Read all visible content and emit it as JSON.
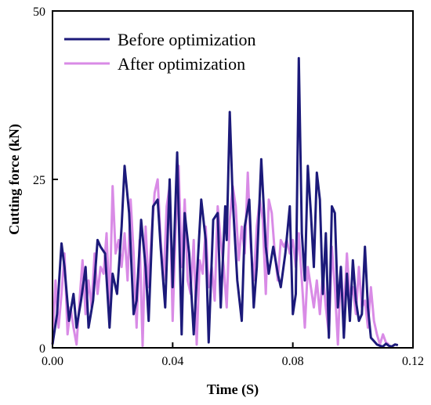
{
  "chart_data": {
    "type": "line",
    "xlabel": "Time (S)",
    "ylabel": "Cutting force (kN)",
    "xlim": [
      0,
      0.12
    ],
    "ylim": [
      0,
      50
    ],
    "xticks": [
      "0.00",
      "0.04",
      "0.08",
      "0.12"
    ],
    "yticks": [
      "0",
      "25",
      "50"
    ],
    "grid": false,
    "legend_position": "top-left",
    "series": [
      {
        "name": "Before optimization",
        "color": "#1c1a7a",
        "x": [
          0.0,
          0.0015,
          0.003,
          0.004,
          0.0055,
          0.007,
          0.008,
          0.0095,
          0.011,
          0.012,
          0.0135,
          0.015,
          0.016,
          0.0175,
          0.019,
          0.02,
          0.0215,
          0.023,
          0.024,
          0.0255,
          0.027,
          0.028,
          0.0295,
          0.031,
          0.032,
          0.0335,
          0.035,
          0.036,
          0.0375,
          0.039,
          0.04,
          0.0415,
          0.043,
          0.044,
          0.0455,
          0.047,
          0.048,
          0.0495,
          0.051,
          0.052,
          0.0535,
          0.055,
          0.056,
          0.0575,
          0.058,
          0.059,
          0.06,
          0.0615,
          0.063,
          0.064,
          0.0655,
          0.067,
          0.068,
          0.0695,
          0.071,
          0.072,
          0.0735,
          0.075,
          0.076,
          0.0775,
          0.079,
          0.08,
          0.081,
          0.082,
          0.083,
          0.084,
          0.085,
          0.086,
          0.087,
          0.088,
          0.089,
          0.09,
          0.091,
          0.092,
          0.093,
          0.094,
          0.095,
          0.096,
          0.097,
          0.098,
          0.099,
          0.1,
          0.101,
          0.102,
          0.103,
          0.104,
          0.105,
          0.106,
          0.107,
          0.108,
          0.109,
          0.11,
          0.111,
          0.112,
          0.113,
          0.114,
          0.115
        ],
        "y": [
          0.5,
          5,
          15.5,
          12,
          4,
          8,
          3,
          7,
          12,
          3,
          7,
          16,
          15,
          14,
          3,
          11,
          8,
          18,
          27,
          20,
          5,
          7,
          19,
          12,
          4,
          21,
          22,
          15,
          6,
          25,
          9,
          29,
          2,
          20,
          14,
          2,
          10,
          22,
          16,
          0.8,
          19,
          20,
          6,
          21,
          16,
          35,
          22,
          10,
          4,
          18,
          22,
          6,
          12,
          28,
          15,
          11,
          15,
          11,
          9,
          14,
          21,
          5,
          8,
          43,
          17,
          10,
          27,
          20,
          12,
          26,
          22,
          8,
          17,
          1.5,
          21,
          20,
          6,
          12,
          1.5,
          11,
          4,
          13,
          7,
          4,
          5,
          15,
          6,
          1.5,
          1,
          0.5,
          0.3,
          0.2,
          0.6,
          0.3,
          0.2,
          0.5,
          0.4
        ]
      },
      {
        "name": "After optimization",
        "color": "#d98be6",
        "x": [
          0.0,
          0.001,
          0.002,
          0.003,
          0.004,
          0.005,
          0.006,
          0.007,
          0.008,
          0.009,
          0.01,
          0.011,
          0.012,
          0.013,
          0.014,
          0.015,
          0.016,
          0.017,
          0.018,
          0.019,
          0.02,
          0.021,
          0.022,
          0.023,
          0.024,
          0.025,
          0.026,
          0.027,
          0.028,
          0.029,
          0.03,
          0.031,
          0.032,
          0.033,
          0.034,
          0.035,
          0.036,
          0.037,
          0.038,
          0.039,
          0.04,
          0.041,
          0.042,
          0.043,
          0.044,
          0.045,
          0.046,
          0.047,
          0.048,
          0.049,
          0.05,
          0.051,
          0.052,
          0.053,
          0.054,
          0.055,
          0.056,
          0.057,
          0.058,
          0.059,
          0.06,
          0.061,
          0.062,
          0.063,
          0.064,
          0.065,
          0.066,
          0.067,
          0.068,
          0.069,
          0.07,
          0.071,
          0.072,
          0.073,
          0.074,
          0.075,
          0.076,
          0.077,
          0.078,
          0.079,
          0.08,
          0.081,
          0.082,
          0.083,
          0.084,
          0.085,
          0.086,
          0.087,
          0.088,
          0.089,
          0.09,
          0.091,
          0.092,
          0.093,
          0.094,
          0.095,
          0.096,
          0.097,
          0.098,
          0.099,
          0.1,
          0.101,
          0.102,
          0.103,
          0.104,
          0.105,
          0.106,
          0.107,
          0.108,
          0.109,
          0.11,
          0.111,
          0.112
        ],
        "y": [
          0.5,
          10,
          3,
          8,
          14,
          2,
          6,
          3,
          0.5,
          7,
          13,
          5,
          10,
          6,
          14,
          8,
          12,
          11,
          17,
          6,
          24,
          14,
          16,
          12,
          17,
          10,
          22,
          14,
          3,
          16,
          0.3,
          18,
          9,
          17,
          23,
          25,
          16,
          10,
          21,
          24,
          4,
          18,
          27,
          12,
          22,
          10,
          8,
          16,
          0.5,
          13,
          11,
          18,
          9,
          12,
          7,
          21,
          16,
          12,
          6,
          19,
          24,
          21,
          13,
          18,
          14,
          26,
          15,
          10,
          18,
          22,
          19,
          8,
          22,
          20,
          14,
          10,
          16,
          15,
          16,
          14,
          16,
          12,
          17,
          10,
          3,
          12,
          9,
          6,
          10,
          5,
          11,
          6,
          2,
          15,
          9,
          0.5,
          12,
          5,
          14,
          7,
          9,
          5,
          12,
          6,
          7,
          3,
          9,
          4,
          2,
          0.5,
          2,
          0.8,
          0.5
        ]
      }
    ]
  }
}
